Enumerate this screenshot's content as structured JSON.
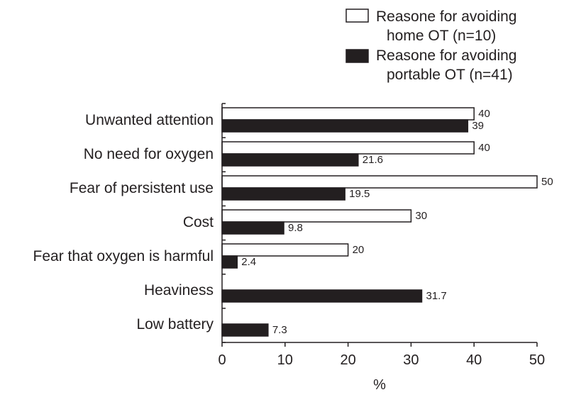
{
  "chart_data": {
    "type": "bar",
    "orientation": "horizontal",
    "categories": [
      "Unwanted attention",
      "No need for oxygen",
      "Fear of persistent use",
      "Cost",
      "Fear that oxygen is harmful",
      "Heaviness",
      "Low battery"
    ],
    "series": [
      {
        "name": "Reasone for avoiding home OT (n=10)",
        "name_lines": [
          "Reasone for avoiding",
          "home OT (n=10)"
        ],
        "values": [
          40,
          40,
          50,
          30,
          20,
          null,
          null
        ],
        "labels": [
          "40",
          "40",
          "50",
          "30",
          "20",
          null,
          null
        ],
        "fill": "#ffffff",
        "stroke": "#231f20"
      },
      {
        "name": "Reasone for avoiding portable OT (n=41)",
        "name_lines": [
          "Reasone for avoiding",
          "portable OT (n=41)"
        ],
        "values": [
          39,
          21.6,
          19.5,
          9.8,
          2.4,
          31.7,
          7.3
        ],
        "labels": [
          "39",
          "21.6",
          "19.5",
          "9.8",
          "2.4",
          "31.7",
          "7.3"
        ],
        "fill": "#231f20",
        "stroke": "#231f20"
      }
    ],
    "xlabel": "%",
    "ylabel": "",
    "xlim": [
      0,
      50
    ],
    "xticks": [
      0,
      10,
      20,
      30,
      40,
      50
    ],
    "xtick_labels": [
      "0",
      "10",
      "20",
      "30",
      "40",
      "50"
    ],
    "grid": false,
    "legend_position": "top-right"
  }
}
